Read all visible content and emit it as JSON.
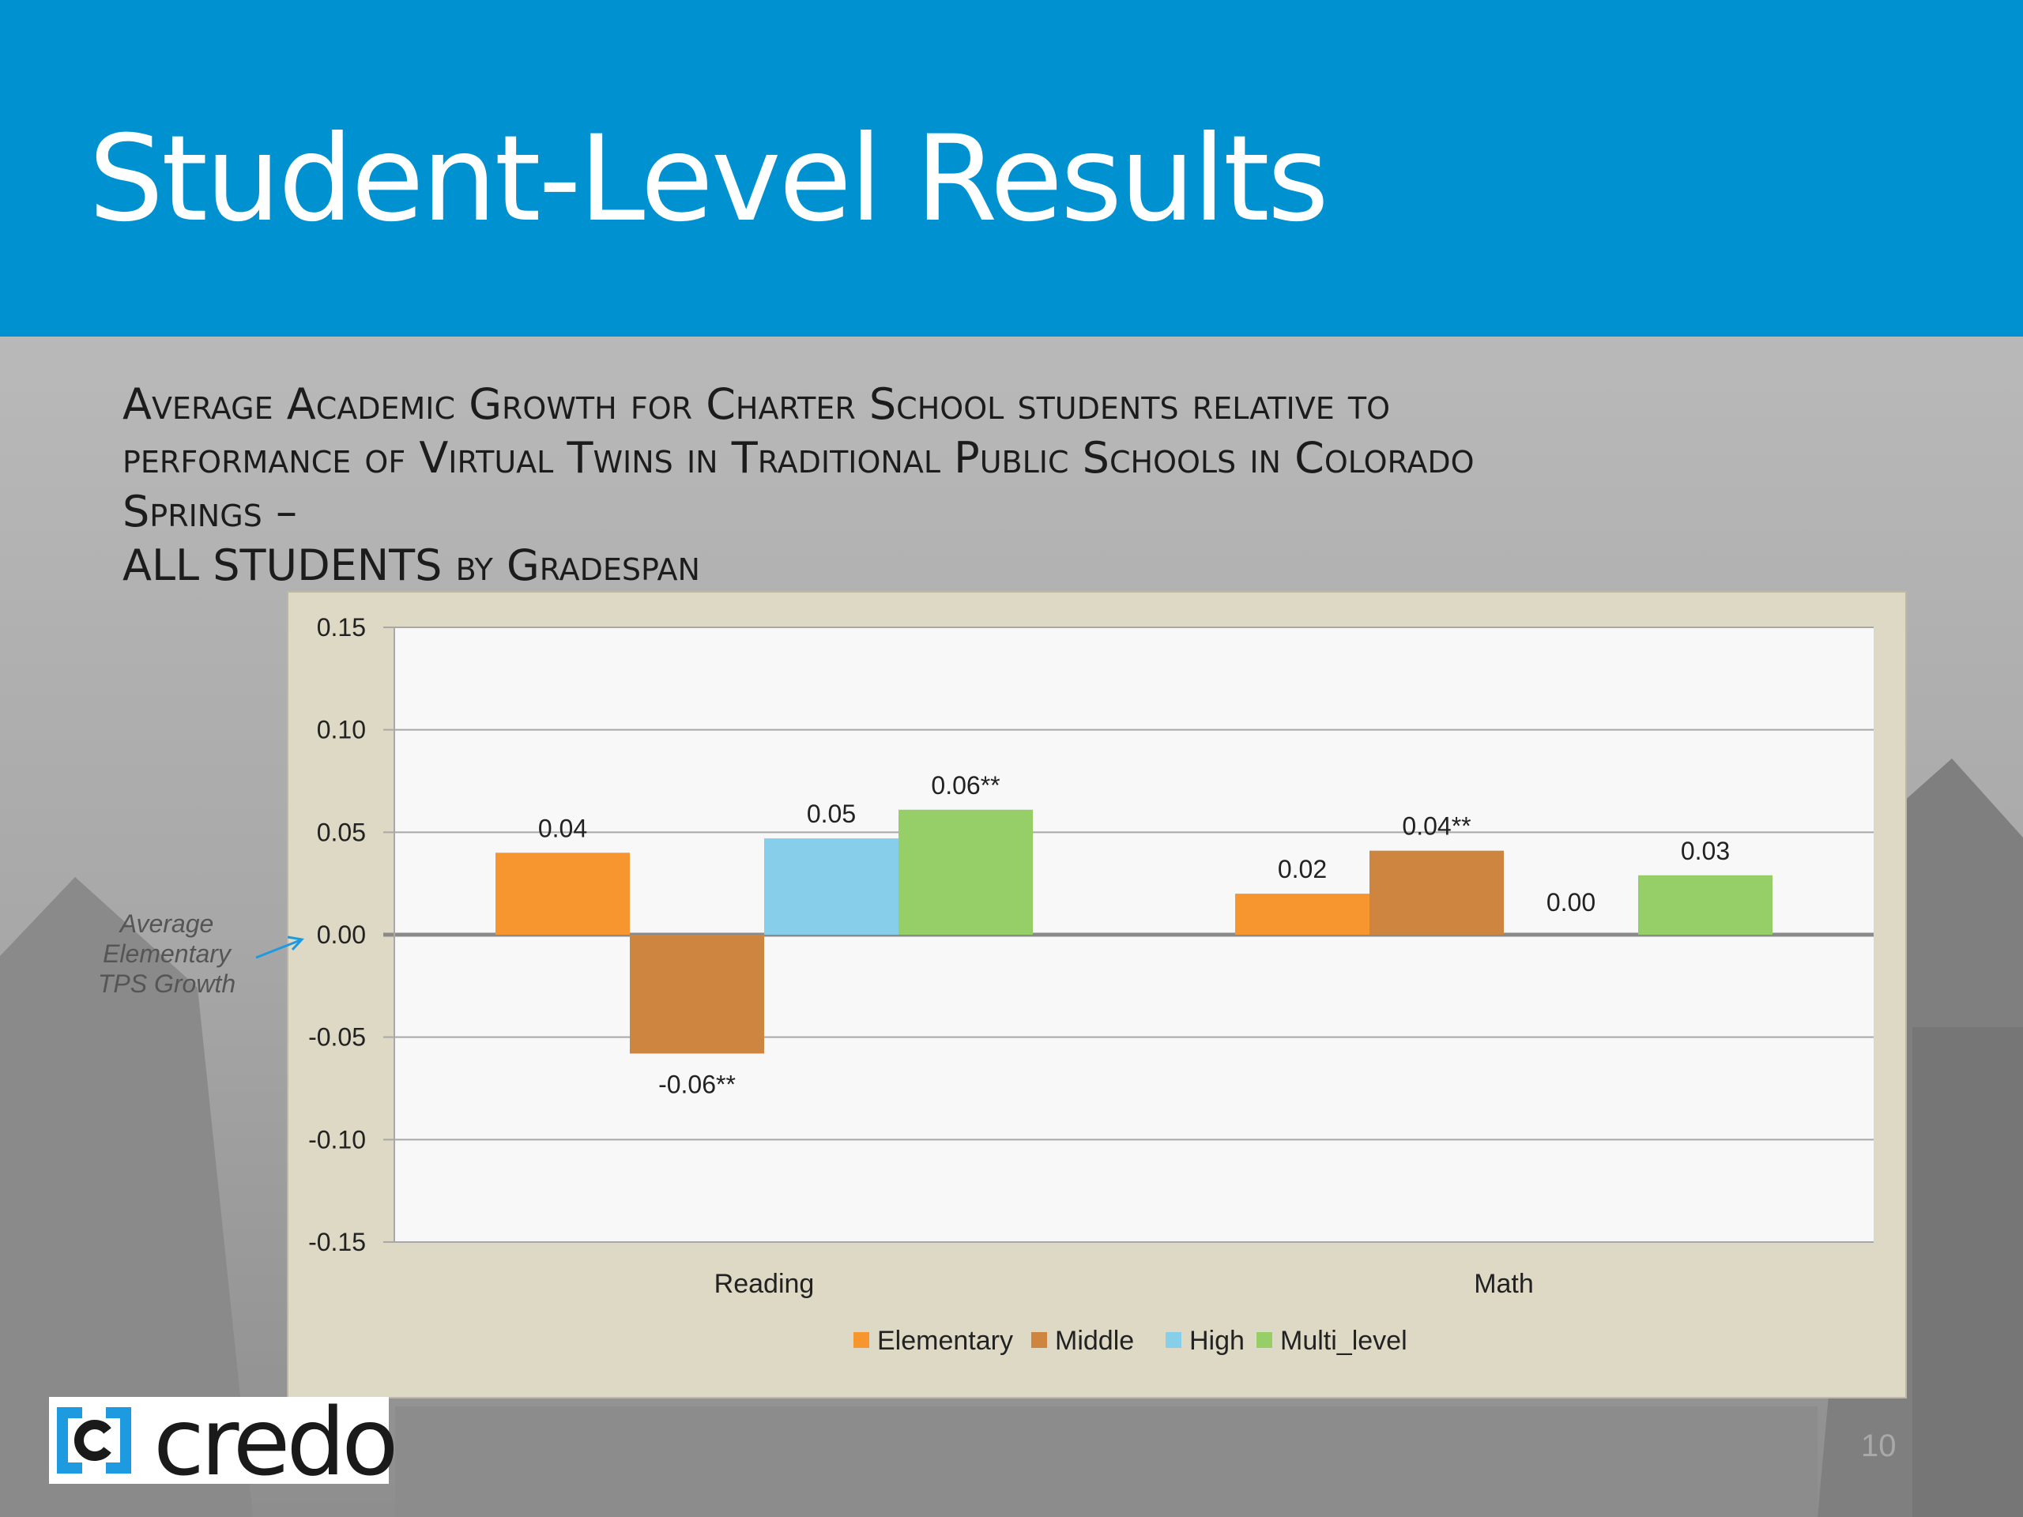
{
  "slide": {
    "title": "Student-Level Results",
    "subtitle_lines": [
      "Average Academic Growth for Charter School students relative to",
      "performance of Virtual Twins in Traditional Public Schools in Colorado",
      "Springs –",
      "ALL STUDENTS by Gradespan"
    ],
    "annotation_lines": [
      "Average",
      "Elementary",
      "TPS Growth"
    ],
    "logo_text": "credo",
    "page_number": "10",
    "header_color": "#0092d0"
  },
  "chart_data": {
    "type": "bar",
    "categories": [
      "Reading",
      "Math"
    ],
    "series": [
      {
        "name": "Elementary",
        "color": "#f7962f",
        "values": [
          0.04,
          0.02
        ],
        "labels": [
          "0.04",
          "0.02"
        ]
      },
      {
        "name": "Middle",
        "color": "#cd853f",
        "values": [
          -0.058,
          0.041
        ],
        "labels": [
          "-0.06**",
          "0.04**"
        ]
      },
      {
        "name": "High",
        "color": "#87ceeb",
        "values": [
          0.047,
          0.0
        ],
        "labels": [
          "0.05",
          "0.00"
        ]
      },
      {
        "name": "Multi_level",
        "color": "#96cf68",
        "values": [
          0.061,
          0.029
        ],
        "labels": [
          "0.06**",
          "0.03"
        ]
      }
    ],
    "ylim": [
      -0.15,
      0.15
    ],
    "yticks": [
      0.15,
      0.1,
      0.05,
      0.0,
      -0.05,
      -0.1,
      -0.15
    ],
    "ytick_labels": [
      "0.15",
      "0.10",
      "0.05",
      "0.00",
      "-0.05",
      "-0.10",
      "-0.15"
    ],
    "grid": true,
    "legend_position": "bottom",
    "xlabel": "",
    "ylabel": ""
  }
}
